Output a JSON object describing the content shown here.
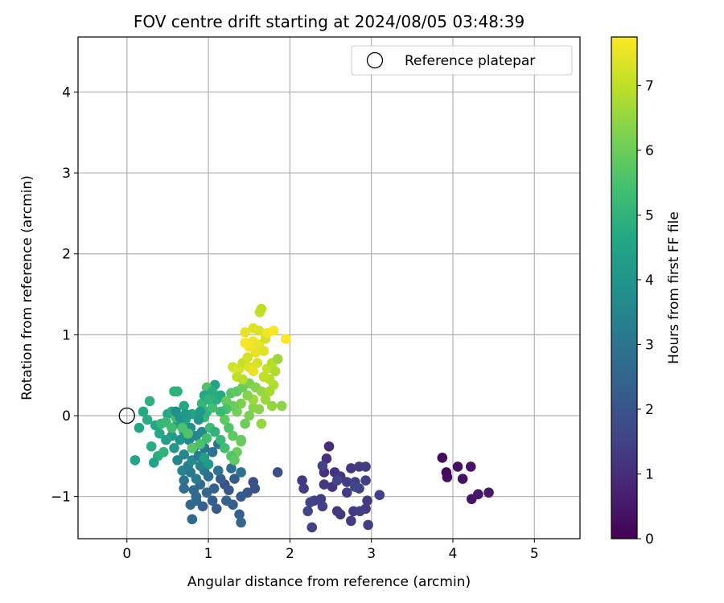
{
  "chart_data": {
    "type": "scatter",
    "title": "FOV centre drift starting at 2024/08/05 03:48:39",
    "xlabel": "Angular distance from reference (arcmin)",
    "ylabel": "Rotation from reference (arcmin)",
    "xlim": [
      -0.6,
      5.56
    ],
    "ylim": [
      -1.52,
      4.68
    ],
    "xticks": [
      0,
      1,
      2,
      3,
      4,
      5
    ],
    "xtick_labels": [
      "0",
      "1",
      "2",
      "3",
      "4",
      "5"
    ],
    "yticks": [
      -1,
      0,
      1,
      2,
      3,
      4
    ],
    "ytick_labels": [
      "−1",
      "0",
      "1",
      "2",
      "3",
      "4"
    ],
    "grid": true,
    "legend": {
      "position": "top-right",
      "entries": [
        {
          "label": "Reference platepar",
          "marker": "open-circle"
        }
      ]
    },
    "reference_point": {
      "x": 0,
      "y": 0
    },
    "colorbar": {
      "label": "Hours from first FF file",
      "min": 0,
      "max": 7.75,
      "colormap": "viridis",
      "ticks": [
        0,
        1,
        2,
        3,
        4,
        5,
        6,
        7
      ],
      "tick_labels": [
        "0",
        "1",
        "2",
        "3",
        "4",
        "5",
        "6",
        "7"
      ]
    },
    "points": [
      [
        3.87,
        -0.52,
        0.15
      ],
      [
        3.92,
        -0.7,
        0.2
      ],
      [
        3.93,
        -0.76,
        0.25
      ],
      [
        4.06,
        -0.63,
        0.3
      ],
      [
        4.12,
        -0.78,
        0.35
      ],
      [
        4.22,
        -0.63,
        0.4
      ],
      [
        4.23,
        -1.03,
        0.45
      ],
      [
        4.31,
        -0.97,
        0.5
      ],
      [
        4.44,
        -0.95,
        0.55
      ],
      [
        2.48,
        -0.38,
        1.0
      ],
      [
        2.45,
        -0.53,
        1.05
      ],
      [
        2.42,
        -0.7,
        1.1
      ],
      [
        2.55,
        -0.7,
        1.15
      ],
      [
        2.62,
        -0.75,
        1.2
      ],
      [
        2.75,
        -0.65,
        1.25
      ],
      [
        2.85,
        -0.63,
        1.3
      ],
      [
        2.93,
        -0.63,
        1.35
      ],
      [
        2.7,
        -0.82,
        1.4
      ],
      [
        2.8,
        -0.82,
        1.45
      ],
      [
        2.93,
        -0.8,
        1.5
      ],
      [
        2.52,
        -0.88,
        1.2
      ],
      [
        2.42,
        -0.85,
        1.25
      ],
      [
        2.15,
        -0.8,
        1.3
      ],
      [
        2.17,
        -0.9,
        1.35
      ],
      [
        2.7,
        -0.95,
        1.4
      ],
      [
        2.85,
        -0.9,
        1.45
      ],
      [
        3.1,
        -0.98,
        1.5
      ],
      [
        2.95,
        -1.05,
        1.3
      ],
      [
        2.93,
        -1.15,
        1.35
      ],
      [
        2.38,
        -1.03,
        1.4
      ],
      [
        2.3,
        -1.05,
        1.45
      ],
      [
        2.4,
        -1.12,
        1.5
      ],
      [
        2.25,
        -1.07,
        1.55
      ],
      [
        2.22,
        -1.18,
        1.6
      ],
      [
        2.58,
        -1.18,
        1.2
      ],
      [
        2.62,
        -1.22,
        1.25
      ],
      [
        2.78,
        -1.18,
        1.3
      ],
      [
        2.75,
        -1.3,
        1.35
      ],
      [
        2.86,
        -1.18,
        1.4
      ],
      [
        2.96,
        -1.35,
        1.45
      ],
      [
        2.27,
        -1.38,
        1.5
      ],
      [
        2.4,
        -0.62,
        1.55
      ],
      [
        2.58,
        -0.8,
        1.6
      ],
      [
        2.8,
        -0.88,
        1.65
      ],
      [
        1.85,
        -0.7,
        1.8
      ],
      [
        1.55,
        -0.82,
        1.9
      ],
      [
        1.57,
        -0.9,
        2.0
      ],
      [
        1.48,
        -0.95,
        2.1
      ],
      [
        1.4,
        -1.0,
        2.2
      ],
      [
        1.3,
        -1.1,
        2.3
      ],
      [
        1.38,
        -1.22,
        2.4
      ],
      [
        1.4,
        -1.32,
        2.5
      ],
      [
        1.1,
        -1.15,
        2.2
      ],
      [
        1.05,
        -1.05,
        2.3
      ],
      [
        0.93,
        -1.12,
        2.4
      ],
      [
        0.85,
        -1.05,
        2.5
      ],
      [
        0.78,
        -1.1,
        2.6
      ],
      [
        0.8,
        -1.28,
        2.7
      ],
      [
        1.2,
        -0.85,
        2.0
      ],
      [
        1.25,
        -0.92,
        2.1
      ],
      [
        1.32,
        -0.78,
        2.2
      ],
      [
        1.15,
        -0.78,
        2.3
      ],
      [
        1.07,
        -0.9,
        2.4
      ],
      [
        0.98,
        -0.95,
        2.5
      ],
      [
        0.9,
        -0.85,
        2.6
      ],
      [
        0.82,
        -0.92,
        2.7
      ],
      [
        1.0,
        -0.75,
        2.8
      ],
      [
        1.12,
        -0.68,
        2.9
      ],
      [
        0.95,
        -0.68,
        3.0
      ],
      [
        1.28,
        -0.65,
        2.8
      ],
      [
        1.4,
        -0.7,
        2.9
      ],
      [
        0.7,
        -0.8,
        3.0
      ],
      [
        0.78,
        -0.7,
        3.1
      ],
      [
        0.85,
        -0.78,
        3.2
      ],
      [
        0.75,
        -0.62,
        3.3
      ],
      [
        0.68,
        -0.68,
        3.4
      ],
      [
        0.62,
        -0.55,
        3.5
      ],
      [
        0.7,
        -0.48,
        3.6
      ],
      [
        0.8,
        -0.55,
        3.7
      ],
      [
        0.9,
        -0.62,
        3.5
      ],
      [
        0.88,
        -0.5,
        3.3
      ],
      [
        0.95,
        -0.4,
        3.1
      ],
      [
        0.82,
        -0.4,
        3.4
      ],
      [
        0.76,
        -0.3,
        3.5
      ],
      [
        0.85,
        -0.25,
        3.6
      ],
      [
        0.92,
        -0.2,
        3.7
      ],
      [
        0.78,
        -0.15,
        3.8
      ],
      [
        0.7,
        -0.2,
        3.9
      ],
      [
        0.65,
        -0.3,
        4.0
      ],
      [
        0.58,
        -0.4,
        4.1
      ],
      [
        0.55,
        -0.25,
        4.2
      ],
      [
        0.62,
        -0.1,
        4.3
      ],
      [
        0.72,
        -0.05,
        4.4
      ],
      [
        0.8,
        0.02,
        4.5
      ],
      [
        1.05,
        -0.45,
        2.9
      ],
      [
        1.12,
        -0.35,
        3.0
      ],
      [
        0.7,
        -0.9,
        2.8
      ],
      [
        0.85,
        -1.0,
        2.6
      ],
      [
        1.22,
        -1.05,
        2.4
      ],
      [
        0.1,
        -0.55,
        4.5
      ],
      [
        0.15,
        -0.15,
        4.6
      ],
      [
        0.2,
        0.05,
        4.7
      ],
      [
        0.25,
        -0.05,
        4.8
      ],
      [
        0.28,
        0.18,
        4.9
      ],
      [
        0.35,
        -0.12,
        4.6
      ],
      [
        0.4,
        -0.22,
        4.7
      ],
      [
        0.3,
        -0.38,
        4.8
      ],
      [
        0.38,
        -0.5,
        4.9
      ],
      [
        0.45,
        -0.45,
        5.0
      ],
      [
        0.33,
        -0.58,
        4.5
      ],
      [
        0.48,
        -0.3,
        4.4
      ],
      [
        0.5,
        0.02,
        4.6
      ],
      [
        0.55,
        0.05,
        4.8
      ],
      [
        0.58,
        0.3,
        4.9
      ],
      [
        0.62,
        0.3,
        5.0
      ],
      [
        0.7,
        0.12,
        4.7
      ],
      [
        0.42,
        -0.1,
        5.1
      ],
      [
        0.48,
        -0.08,
        5.2
      ],
      [
        0.55,
        -0.15,
        5.3
      ],
      [
        0.6,
        -0.02,
        5.4
      ],
      [
        0.68,
        -0.15,
        5.5
      ],
      [
        0.75,
        -0.22,
        5.6
      ],
      [
        0.8,
        -0.4,
        5.7
      ],
      [
        0.9,
        -0.35,
        5.5
      ],
      [
        0.98,
        -0.28,
        5.4
      ],
      [
        1.02,
        -0.15,
        5.3
      ],
      [
        0.95,
        -0.02,
        5.2
      ],
      [
        0.98,
        0.05,
        5.0
      ],
      [
        0.92,
        0.15,
        5.1
      ],
      [
        1.05,
        0.1,
        5.4
      ],
      [
        1.1,
        0.2,
        4.9
      ],
      [
        1.15,
        0.25,
        4.7
      ],
      [
        1.08,
        0.38,
        4.5
      ],
      [
        0.98,
        0.35,
        5.6
      ],
      [
        1.2,
        -0.05,
        5.8
      ],
      [
        1.25,
        -0.15,
        5.6
      ],
      [
        1.3,
        -0.25,
        5.8
      ],
      [
        1.35,
        -0.45,
        6.0
      ],
      [
        1.4,
        -0.32,
        6.1
      ],
      [
        1.45,
        -0.1,
        6.0
      ],
      [
        1.5,
        0.0,
        6.2
      ],
      [
        1.55,
        0.1,
        6.3
      ],
      [
        1.62,
        0.08,
        6.4
      ],
      [
        1.65,
        -0.1,
        6.5
      ],
      [
        1.55,
        0.2,
        6.6
      ],
      [
        1.48,
        0.25,
        6.3
      ],
      [
        1.4,
        0.15,
        6.2
      ],
      [
        1.35,
        0.05,
        6.1
      ],
      [
        1.3,
        0.12,
        6.0
      ],
      [
        1.22,
        0.18,
        5.9
      ],
      [
        1.28,
        0.28,
        5.7
      ],
      [
        1.35,
        0.3,
        5.8
      ],
      [
        1.42,
        0.35,
        6.0
      ],
      [
        1.5,
        0.4,
        6.2
      ],
      [
        1.58,
        0.35,
        6.3
      ],
      [
        1.65,
        0.3,
        6.5
      ],
      [
        1.7,
        0.2,
        6.6
      ],
      [
        1.75,
        0.3,
        6.7
      ],
      [
        1.8,
        0.38,
        6.8
      ],
      [
        1.75,
        0.45,
        6.9
      ],
      [
        1.68,
        0.48,
        7.0
      ],
      [
        1.72,
        0.58,
        7.1
      ],
      [
        1.78,
        0.65,
        6.9
      ],
      [
        1.82,
        0.55,
        6.8
      ],
      [
        1.85,
        0.7,
        6.6
      ],
      [
        1.9,
        0.12,
        6.4
      ],
      [
        1.78,
        0.12,
        6.5
      ],
      [
        1.3,
        0.6,
        7.2
      ],
      [
        1.38,
        0.58,
        7.3
      ],
      [
        1.42,
        0.65,
        7.1
      ],
      [
        1.5,
        0.6,
        7.4
      ],
      [
        1.55,
        0.55,
        7.5
      ],
      [
        1.6,
        0.65,
        7.3
      ],
      [
        1.58,
        0.78,
        7.5
      ],
      [
        1.5,
        0.85,
        7.6
      ],
      [
        1.45,
        0.9,
        7.7
      ],
      [
        1.55,
        0.92,
        7.6
      ],
      [
        1.62,
        0.88,
        7.5
      ],
      [
        1.68,
        0.8,
        7.4
      ],
      [
        1.7,
        0.95,
        7.2
      ],
      [
        1.62,
        1.05,
        7.3
      ],
      [
        1.55,
        1.08,
        7.4
      ],
      [
        1.45,
        1.03,
        7.5
      ],
      [
        1.72,
        1.02,
        7.6
      ],
      [
        1.8,
        1.05,
        7.7
      ],
      [
        1.95,
        0.95,
        7.75
      ],
      [
        1.63,
        1.28,
        7.1
      ],
      [
        1.65,
        1.32,
        7.0
      ],
      [
        1.48,
        0.72,
        7.2
      ],
      [
        1.35,
        0.48,
        7.0
      ],
      [
        1.42,
        0.45,
        6.9
      ],
      [
        1.22,
        0.08,
        5.5
      ],
      [
        1.15,
        0.05,
        5.2
      ],
      [
        1.08,
        -0.2,
        5.0
      ],
      [
        1.15,
        -0.3,
        5.2
      ],
      [
        1.2,
        -0.4,
        5.4
      ],
      [
        1.28,
        -0.5,
        5.6
      ],
      [
        1.32,
        -0.55,
        5.8
      ],
      [
        1.4,
        -0.3,
        5.9
      ],
      [
        0.95,
        -0.52,
        4.4
      ],
      [
        1.0,
        -0.6,
        4.2
      ],
      [
        0.6,
        0.05,
        3.8
      ],
      [
        0.65,
        -0.02,
        3.9
      ],
      [
        0.72,
        0.02,
        4.1
      ],
      [
        0.9,
        0.05,
        4.2
      ],
      [
        0.95,
        0.25,
        4.6
      ],
      [
        1.05,
        0.3,
        4.8
      ],
      [
        1.0,
        0.2,
        5.0
      ],
      [
        0.88,
        -0.05,
        4.0
      ]
    ]
  }
}
